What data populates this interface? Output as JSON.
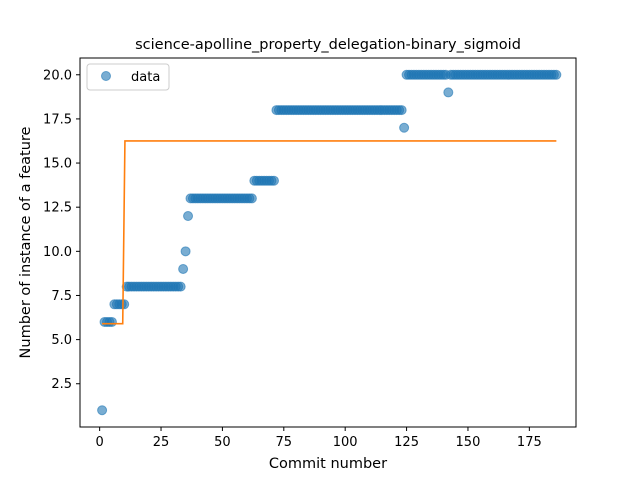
{
  "chart_data": {
    "type": "scatter",
    "title": "science-apolline_property_delegation-binary_sigmoid",
    "xlabel": "Commit number",
    "ylabel": "Number of instance of a feature",
    "xlim": [
      -8,
      194
    ],
    "ylim": [
      0.05,
      20.95
    ],
    "xticks": [
      0,
      25,
      50,
      75,
      100,
      125,
      150,
      175
    ],
    "yticks": [
      2.5,
      5.0,
      7.5,
      10.0,
      12.5,
      15.0,
      17.5,
      20.0
    ],
    "ytick_labels": [
      "2.5",
      "5.0",
      "7.5",
      "10.0",
      "12.5",
      "15.0",
      "17.5",
      "20.0"
    ],
    "legend": {
      "position": "top-left",
      "entries": [
        "data"
      ]
    },
    "colors": {
      "data": "#1f77b4",
      "fit": "#ff7f0e"
    },
    "data_runs": [
      {
        "x_start": 1,
        "x_end": 1,
        "y": 1
      },
      {
        "x_start": 2,
        "x_end": 5,
        "y": 6
      },
      {
        "x_start": 6,
        "x_end": 10,
        "y": 7
      },
      {
        "x_start": 11,
        "x_end": 33,
        "y": 8
      },
      {
        "x_start": 34,
        "x_end": 34,
        "y": 9
      },
      {
        "x_start": 35,
        "x_end": 35,
        "y": 10
      },
      {
        "x_start": 36,
        "x_end": 36,
        "y": 12
      },
      {
        "x_start": 37,
        "x_end": 62,
        "y": 13
      },
      {
        "x_start": 63,
        "x_end": 71,
        "y": 14
      },
      {
        "x_start": 72,
        "x_end": 123,
        "y": 18
      },
      {
        "x_start": 124,
        "x_end": 124,
        "y": 17
      },
      {
        "x_start": 125,
        "x_end": 141,
        "y": 20
      },
      {
        "x_start": 142,
        "x_end": 142,
        "y": 19
      },
      {
        "x_start": 143,
        "x_end": 186,
        "y": 20
      }
    ],
    "fit_line": {
      "x": [
        1,
        9.4,
        10.3,
        186
      ],
      "y": [
        5.9,
        5.9,
        16.25,
        16.25
      ]
    }
  }
}
